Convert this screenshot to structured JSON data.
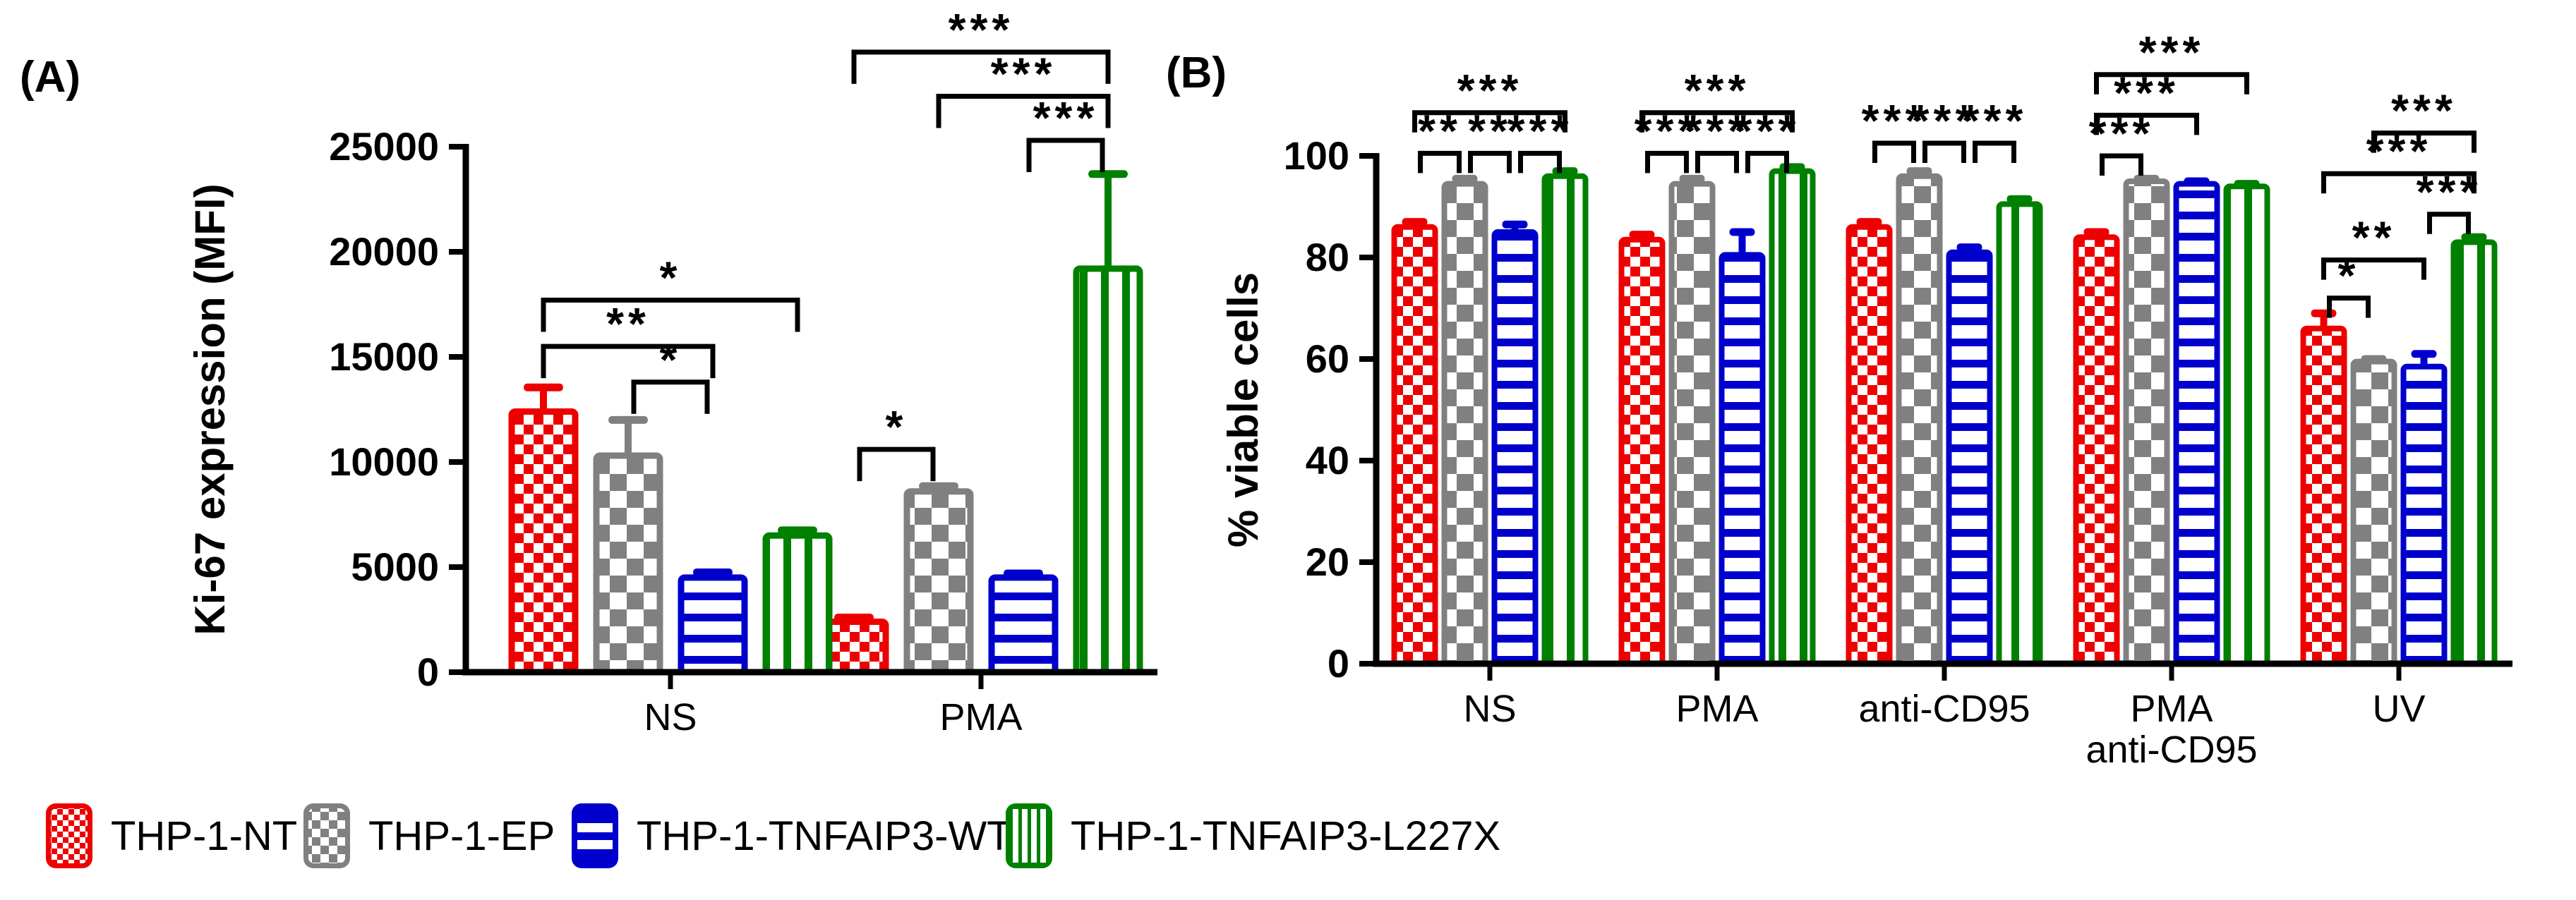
{
  "figure_title": "",
  "panels": {
    "a_label": "(A)",
    "b_label": "(B)"
  },
  "legend": {
    "items": [
      {
        "label": "THP-1-NT",
        "color": "#ee0000",
        "pattern": "checker-fine",
        "x": 65
      },
      {
        "label": "THP-1-EP",
        "color": "#808080",
        "pattern": "checker-coarse",
        "x": 430
      },
      {
        "label": "THP-1-TNFAIP3-WT",
        "color": "#0000cc",
        "pattern": "stripes-horizontal",
        "x": 810
      },
      {
        "label": "THP-1-TNFAIP3-L227X",
        "color": "#008000",
        "pattern": "stripes-vertical",
        "x": 1425
      }
    ]
  },
  "chart_data": [
    {
      "id": "A",
      "type": "bar",
      "panel_label": "(A)",
      "ylabel": "Ki-67 expression (MFI)",
      "ylim": [
        0,
        25000
      ],
      "yticks": [
        0,
        5000,
        10000,
        15000,
        20000,
        25000
      ],
      "grid": false,
      "legend_position": "bottom",
      "categories": [
        "NS",
        "PMA"
      ],
      "series": [
        {
          "name": "THP-1-NT",
          "color": "#ee0000",
          "pattern": "checker-fine",
          "values": [
            12400,
            2400
          ],
          "errors": [
            1150,
            200
          ]
        },
        {
          "name": "THP-1-EP",
          "color": "#808080",
          "pattern": "checker-coarse",
          "values": [
            10300,
            8600
          ],
          "errors": [
            1700,
            250
          ]
        },
        {
          "name": "THP-1-TNFAIP3-WT",
          "color": "#0000cc",
          "pattern": "stripes-horizontal",
          "values": [
            4500,
            4500
          ],
          "errors": [
            250,
            200
          ]
        },
        {
          "name": "THP-1-TNFAIP3-L227X",
          "color": "#008000",
          "pattern": "stripes-vertical",
          "values": [
            6500,
            19200
          ],
          "errors": [
            250,
            4500
          ]
        }
      ],
      "significance": [
        {
          "category": "NS",
          "from": "THP-1-NT",
          "to": "THP-1-TNFAIP3-L227X",
          "label": "*",
          "y": 17700
        },
        {
          "category": "NS",
          "from": "THP-1-NT",
          "to": "THP-1-TNFAIP3-WT",
          "label": "**",
          "y": 15500
        },
        {
          "category": "NS",
          "from": "THP-1-EP",
          "to": "THP-1-TNFAIP3-WT",
          "label": "*",
          "y": 13800
        },
        {
          "category": "PMA",
          "from": "THP-1-NT",
          "to": "THP-1-EP",
          "label": "*",
          "y": 10600
        },
        {
          "category": "PMA",
          "from": "THP-1-TNFAIP3-WT",
          "to": "THP-1-TNFAIP3-L227X",
          "label": "***",
          "y": 25300
        },
        {
          "category": "PMA",
          "from": "THP-1-EP",
          "to": "THP-1-TNFAIP3-L227X",
          "label": "***",
          "y": 27400
        },
        {
          "category": "PMA",
          "from": "THP-1-NT",
          "to": "THP-1-TNFAIP3-L227X",
          "label": "***",
          "y": 29500
        }
      ]
    },
    {
      "id": "B",
      "type": "bar",
      "panel_label": "(B)",
      "ylabel": "% viable cells",
      "ylim": [
        0,
        100
      ],
      "yticks": [
        0,
        20,
        40,
        60,
        80,
        100
      ],
      "grid": false,
      "legend_position": "bottom",
      "categories": [
        "NS",
        "PMA",
        "anti-CD95",
        "PMA\nanti-CD95",
        "UV"
      ],
      "series": [
        {
          "name": "THP-1-NT",
          "color": "#ee0000",
          "pattern": "checker-fine",
          "values": [
            86,
            83.5,
            86,
            84,
            66
          ],
          "errors": [
            1,
            1,
            1,
            1,
            3
          ]
        },
        {
          "name": "THP-1-EP",
          "color": "#808080",
          "pattern": "checker-coarse",
          "values": [
            94.5,
            94.5,
            96,
            95,
            59.5
          ],
          "errors": [
            1,
            1,
            1,
            0.5,
            0.5
          ]
        },
        {
          "name": "THP-1-TNFAIP3-WT",
          "color": "#0000cc",
          "pattern": "stripes-horizontal",
          "values": [
            85,
            80.5,
            81,
            94.5,
            58.5
          ],
          "errors": [
            1.5,
            4.5,
            1,
            0.5,
            2.5
          ]
        },
        {
          "name": "THP-1-TNFAIP3-L227X",
          "color": "#008000",
          "pattern": "stripes-vertical",
          "values": [
            96,
            97,
            90.5,
            94,
            83
          ],
          "errors": [
            1,
            0.8,
            1,
            0.5,
            1
          ]
        }
      ],
      "significance": [
        {
          "category": "NS",
          "from": "THP-1-NT",
          "to": "THP-1-EP",
          "label": "**",
          "y": 100.5
        },
        {
          "category": "NS",
          "from": "THP-1-EP",
          "to": "THP-1-TNFAIP3-WT",
          "label": "**",
          "y": 100.5
        },
        {
          "category": "NS",
          "from": "THP-1-TNFAIP3-WT",
          "to": "THP-1-TNFAIP3-L227X",
          "label": "***",
          "y": 100.5
        },
        {
          "category": "NS",
          "from": "THP-1-NT",
          "to": "THP-1-TNFAIP3-L227X",
          "label": "***",
          "y": 108.5
        },
        {
          "category": "PMA",
          "from": "THP-1-NT",
          "to": "THP-1-EP",
          "label": "***",
          "y": 100.5
        },
        {
          "category": "PMA",
          "from": "THP-1-EP",
          "to": "THP-1-TNFAIP3-WT",
          "label": "***",
          "y": 100.5
        },
        {
          "category": "PMA",
          "from": "THP-1-TNFAIP3-WT",
          "to": "THP-1-TNFAIP3-L227X",
          "label": "***",
          "y": 100.5
        },
        {
          "category": "PMA",
          "from": "THP-1-NT",
          "to": "THP-1-TNFAIP3-L227X",
          "label": "***",
          "y": 108.5
        },
        {
          "category": "anti-CD95",
          "from": "THP-1-NT",
          "to": "THP-1-EP",
          "label": "***",
          "y": 102.5
        },
        {
          "category": "anti-CD95",
          "from": "THP-1-EP",
          "to": "THP-1-TNFAIP3-WT",
          "label": "***",
          "y": 102.5
        },
        {
          "category": "anti-CD95",
          "from": "THP-1-TNFAIP3-WT",
          "to": "THP-1-TNFAIP3-L227X",
          "label": "***",
          "y": 102.5
        },
        {
          "category": "PMA\nanti-CD95",
          "from": "THP-1-NT",
          "to": "THP-1-EP",
          "label": "***",
          "y": 100
        },
        {
          "category": "PMA\nanti-CD95",
          "from": "THP-1-NT",
          "to": "THP-1-TNFAIP3-WT",
          "label": "***",
          "y": 108
        },
        {
          "category": "PMA\nanti-CD95",
          "from": "THP-1-NT",
          "to": "THP-1-TNFAIP3-L227X",
          "label": "***",
          "y": 116
        },
        {
          "category": "UV",
          "from": "THP-1-NT",
          "to": "THP-1-EP",
          "label": "*",
          "y": 72
        },
        {
          "category": "UV",
          "from": "THP-1-NT",
          "to": "THP-1-TNFAIP3-WT",
          "label": "**",
          "y": 79.5
        },
        {
          "category": "UV",
          "from": "THP-1-TNFAIP3-WT",
          "to": "THP-1-TNFAIP3-L227X",
          "label": "***",
          "y": 88.5
        },
        {
          "category": "UV",
          "from": "THP-1-NT",
          "to": "THP-1-TNFAIP3-L227X",
          "label": "***",
          "y": 96.5
        },
        {
          "category": "UV",
          "from": "THP-1-EP",
          "to": "THP-1-TNFAIP3-L227X",
          "label": "***",
          "y": 104.5
        }
      ]
    }
  ]
}
